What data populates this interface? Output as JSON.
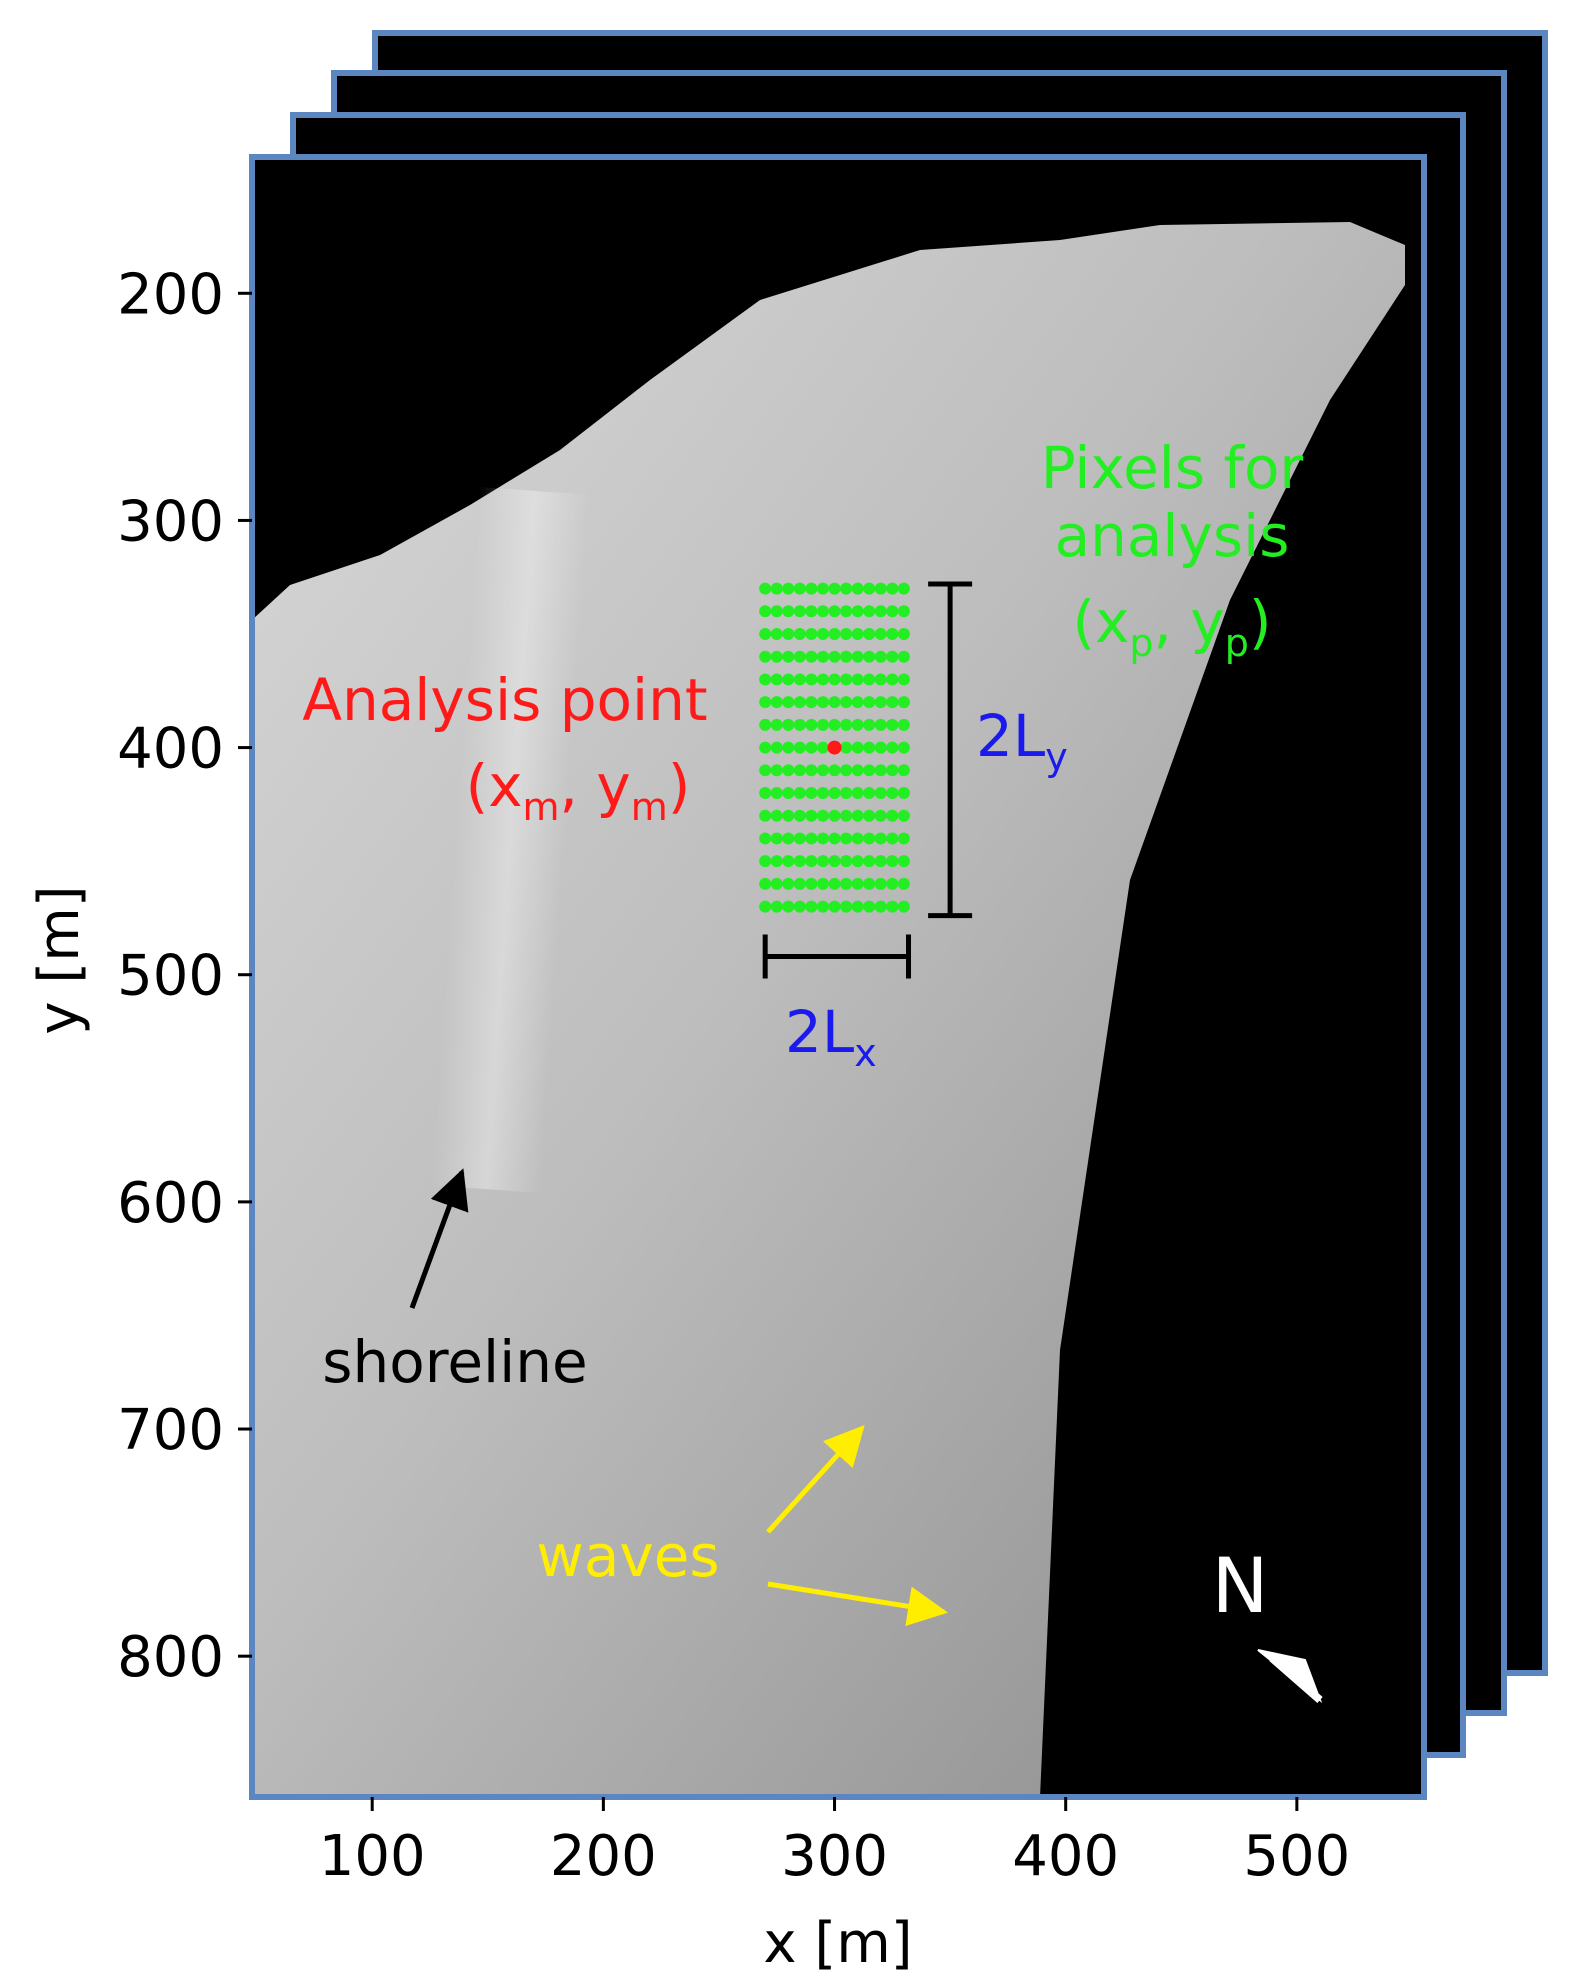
{
  "chart_data": {
    "type": "heatmap",
    "xlabel": "x [m]",
    "ylabel": "y [m]",
    "xlim": [
      48,
      555
    ],
    "ylim": [
      862,
      140
    ],
    "x_ticks": [
      "100",
      "200",
      "300",
      "400",
      "500"
    ],
    "y_ticks": [
      "200",
      "300",
      "400",
      "500",
      "600",
      "700",
      "800"
    ],
    "analysis_point": {
      "x": 300,
      "y": 400
    },
    "pixel_grid": {
      "x_range": [
        270,
        330
      ],
      "y_range": [
        330,
        470
      ],
      "x_step": 5,
      "y_step": 10
    },
    "Lx_bar": {
      "x_range": [
        270,
        332
      ],
      "y": 492
    },
    "Ly_bar": {
      "x": 350,
      "y_range": [
        328,
        474
      ]
    }
  },
  "annotations": {
    "pixels_line1": "Pixels for",
    "pixels_line2": "analysis",
    "pixels_coord_open": "(x",
    "pixels_sub_x": "p",
    "pixels_coord_mid": ", y",
    "pixels_sub_y": "p",
    "pixels_coord_close": ")",
    "analysis_line1": "Analysis point",
    "analysis_coord_open": "(x",
    "analysis_sub_x": "m",
    "analysis_coord_mid": ", y",
    "analysis_sub_y": "m",
    "analysis_coord_close": ")",
    "ly_main": "2L",
    "ly_sub": "y",
    "lx_main": "2L",
    "lx_sub": "x",
    "shoreline": "shoreline",
    "waves": "waves",
    "north": "N"
  },
  "colors": {
    "frame": "#5b86c0",
    "pixels": "#22ee22",
    "analysis": "#ff1a1a",
    "length": "#1a1aee",
    "waves": "#ffee00",
    "north": "#ffffff"
  }
}
